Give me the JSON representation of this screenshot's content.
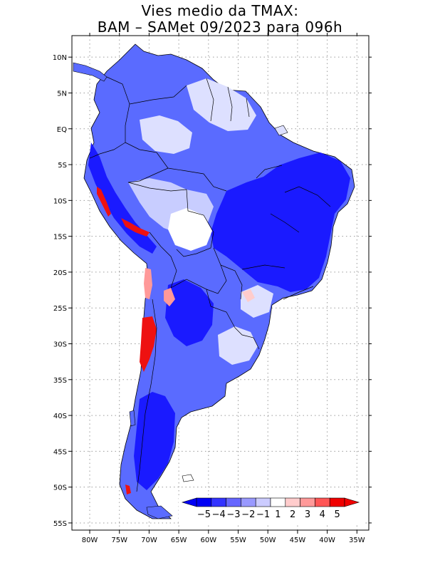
{
  "title": {
    "line1": "Vies medio da TMAX:",
    "line2": "BAM – SAMet 09/2023  para 096h"
  },
  "axes": {
    "lat_labels": [
      "10N",
      "5N",
      "EQ",
      "5S",
      "10S",
      "15S",
      "20S",
      "25S",
      "30S",
      "35S",
      "40S",
      "45S",
      "50S",
      "55S"
    ],
    "lat_values": [
      10,
      5,
      0,
      -5,
      -10,
      -15,
      -20,
      -25,
      -30,
      -35,
      -40,
      -45,
      -50,
      -55
    ],
    "lon_labels": [
      "80W",
      "75W",
      "70W",
      "65W",
      "60W",
      "55W",
      "50W",
      "45W",
      "40W",
      "35W"
    ],
    "lon_values": [
      -80,
      -75,
      -70,
      -65,
      -60,
      -55,
      -50,
      -45,
      -40,
      -35
    ],
    "lon_range": [
      -83,
      -33
    ],
    "lat_range": [
      13,
      -56
    ]
  },
  "colorbar": {
    "labels": [
      "−5",
      "−4",
      "−3",
      "−2",
      "−1",
      "1",
      "2",
      "3",
      "4",
      "5"
    ],
    "colors": [
      "#0000f5",
      "#3333ff",
      "#6666ff",
      "#9999ff",
      "#ccccff",
      "#ffffff",
      "#ffcccc",
      "#ff9999",
      "#ff5555",
      "#f00000"
    ]
  },
  "palette": {
    "strong_blue": "#1a1aff",
    "mid_blue": "#5566ff",
    "light_blue": "#aab4ff",
    "pale_blue": "#dde0ff",
    "red": "#ee1111",
    "pink": "#ff9999"
  }
}
